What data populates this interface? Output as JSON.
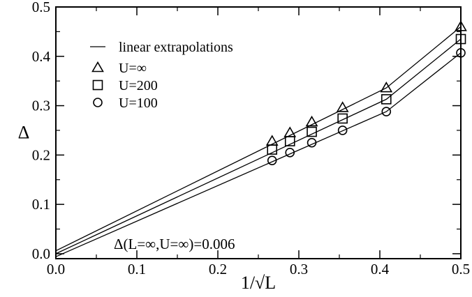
{
  "chart_data": {
    "type": "scatter",
    "title": "",
    "xlabel": "1/√L",
    "ylabel": "Δ",
    "xlim": [
      0.0,
      0.5
    ],
    "ylim": [
      -0.01,
      0.5
    ],
    "x_ticks": [
      "0.0",
      "0.1",
      "0.2",
      "0.3",
      "0.4",
      "0.5"
    ],
    "y_ticks": [
      "0.0",
      "0.1",
      "0.2",
      "0.3",
      "0.4",
      "0.5"
    ],
    "grid": false,
    "legend_position": "top-left",
    "legend": [
      {
        "label": "linear extrapolations",
        "marker": "line"
      },
      {
        "label": "U=∞",
        "marker": "triangle"
      },
      {
        "label": "U=200",
        "marker": "square"
      },
      {
        "label": "U=100",
        "marker": "circle"
      }
    ],
    "series": [
      {
        "name": "U=∞",
        "marker": "triangle",
        "x": [
          0.267,
          0.289,
          0.316,
          0.354,
          0.408,
          0.5
        ],
        "y": [
          0.228,
          0.245,
          0.267,
          0.296,
          0.336,
          0.46
        ]
      },
      {
        "name": "U=200",
        "marker": "square",
        "x": [
          0.267,
          0.289,
          0.316,
          0.354,
          0.408,
          0.5
        ],
        "y": [
          0.211,
          0.228,
          0.247,
          0.274,
          0.313,
          0.435
        ]
      },
      {
        "name": "U=100",
        "marker": "circle",
        "x": [
          0.267,
          0.289,
          0.316,
          0.354,
          0.408,
          0.5
        ],
        "y": [
          0.189,
          0.205,
          0.225,
          0.25,
          0.288,
          0.407
        ]
      }
    ],
    "extrapolation_lines": [
      {
        "series": "U=∞",
        "points": [
          [
            0.0,
            0.006
          ],
          [
            0.408,
            0.336
          ],
          [
            0.5,
            0.46
          ]
        ]
      },
      {
        "series": "U=200",
        "points": [
          [
            0.0,
            0.0
          ],
          [
            0.408,
            0.313
          ],
          [
            0.5,
            0.435
          ]
        ]
      },
      {
        "series": "U=100",
        "points": [
          [
            0.0,
            -0.006
          ],
          [
            0.408,
            0.288
          ],
          [
            0.5,
            0.407
          ]
        ]
      }
    ],
    "annotation": "Δ(L=∞,U=∞)=0.006"
  }
}
